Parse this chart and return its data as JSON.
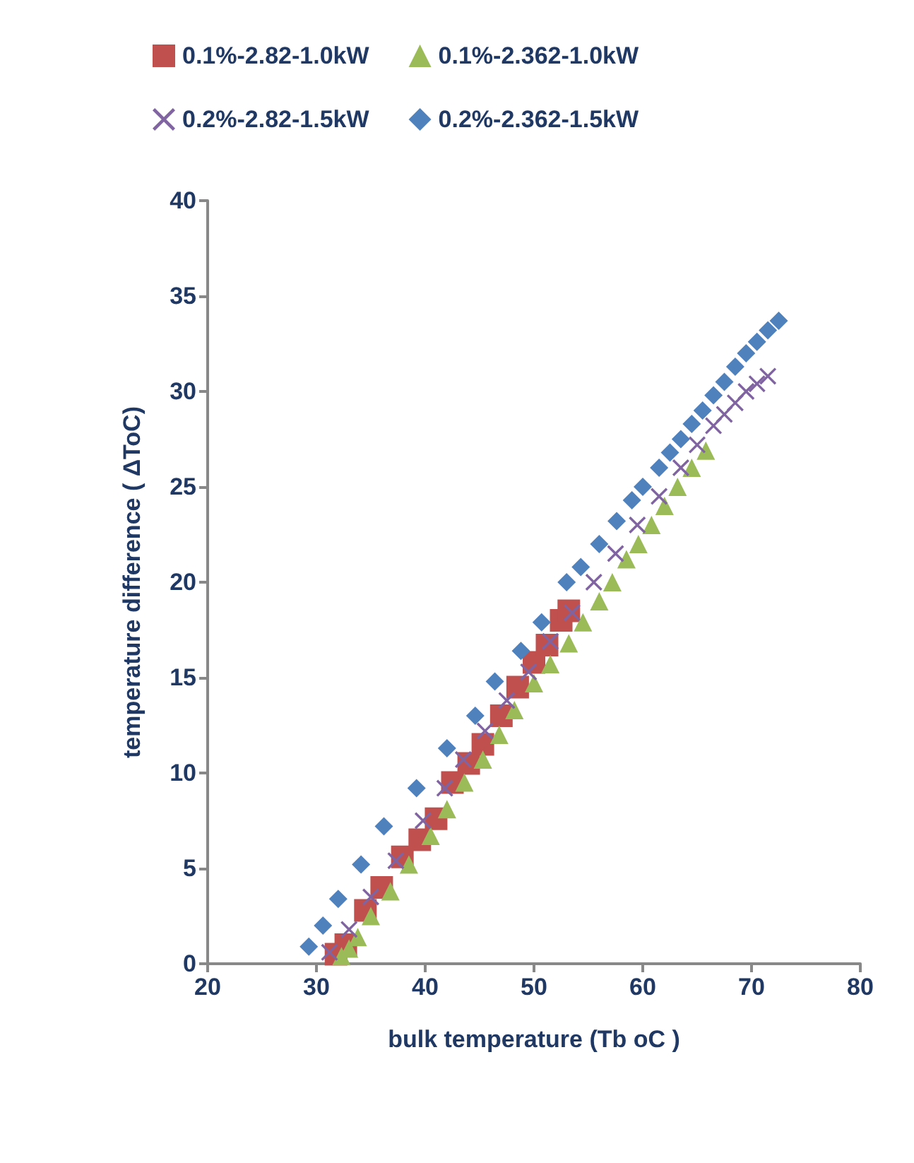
{
  "chart_data": {
    "type": "scatter",
    "xlabel": "bulk temperature (Tb oC )",
    "ylabel": "temperature difference ( ΔToC)",
    "xlim": [
      20,
      80
    ],
    "xticks": [
      20,
      30,
      40,
      50,
      60,
      70,
      80
    ],
    "ylim": [
      0,
      40
    ],
    "yticks": [
      0,
      5,
      10,
      15,
      20,
      25,
      30,
      35,
      40
    ],
    "grid": false,
    "legend": "top",
    "series": [
      {
        "name": "0.1%-2.82-1.0kW",
        "color": "#c0504d",
        "marker": "square",
        "x": [
          31.8,
          32.7,
          34.5,
          36.0,
          37.9,
          39.5,
          41.0,
          42.5,
          44.0,
          45.3,
          47.0,
          48.5,
          50.0,
          51.2,
          52.5,
          53.2
        ],
        "values": [
          0.5,
          1.0,
          2.8,
          4.0,
          5.6,
          6.5,
          7.6,
          9.5,
          10.5,
          11.5,
          13.0,
          14.5,
          15.8,
          16.7,
          18.0,
          18.5
        ]
      },
      {
        "name": "0.1%-2.362-1.0kW",
        "color": "#9bbb59",
        "marker": "triangle",
        "x": [
          32.3,
          33.0,
          33.8,
          35.0,
          36.8,
          38.5,
          40.5,
          42.0,
          43.6,
          45.3,
          46.8,
          48.2,
          50.0,
          51.5,
          53.2,
          54.5,
          56.0,
          57.2,
          58.5,
          59.6,
          60.8,
          62.0,
          63.2,
          64.5,
          65.8
        ],
        "values": [
          0.4,
          0.8,
          1.4,
          2.5,
          3.8,
          5.2,
          6.7,
          8.1,
          9.5,
          10.7,
          12.0,
          13.3,
          14.7,
          15.7,
          16.8,
          17.9,
          19.0,
          20.0,
          21.2,
          22.0,
          23.0,
          24.0,
          25.0,
          26.0,
          26.9
        ]
      },
      {
        "name": "0.2%-2.82-1.5kW",
        "color": "#8064a2",
        "marker": "cross",
        "x": [
          31.2,
          33.0,
          35.0,
          37.3,
          39.8,
          41.8,
          43.5,
          45.5,
          47.5,
          49.5,
          51.5,
          53.5,
          55.5,
          57.5,
          59.5,
          61.5,
          63.5,
          65.0,
          66.5,
          67.5,
          68.5,
          69.5,
          70.5,
          71.5
        ],
        "values": [
          0.6,
          1.8,
          3.5,
          5.4,
          7.5,
          9.2,
          10.7,
          12.2,
          13.8,
          15.3,
          16.9,
          18.4,
          20.0,
          21.5,
          23.0,
          24.5,
          26.0,
          27.2,
          28.2,
          28.8,
          29.4,
          30.0,
          30.4,
          30.8
        ]
      },
      {
        "name": "0.2%-2.362-1.5kW",
        "color": "#4f81bd",
        "marker": "diamond",
        "x": [
          29.3,
          30.6,
          32.0,
          34.1,
          36.2,
          39.2,
          42.0,
          44.6,
          46.4,
          48.8,
          50.7,
          53.0,
          54.3,
          56.0,
          57.6,
          59.0,
          60.0,
          61.5,
          62.5,
          63.5,
          64.5,
          65.5,
          66.5,
          67.5,
          68.5,
          69.5,
          70.5,
          71.5,
          72.5
        ],
        "values": [
          0.9,
          2.0,
          3.4,
          5.2,
          7.2,
          9.2,
          11.3,
          13.0,
          14.8,
          16.4,
          17.9,
          20.0,
          20.8,
          22.0,
          23.2,
          24.3,
          25.0,
          26.0,
          26.8,
          27.5,
          28.3,
          29.0,
          29.8,
          30.5,
          31.3,
          32.0,
          32.6,
          33.2,
          33.7
        ]
      }
    ]
  }
}
